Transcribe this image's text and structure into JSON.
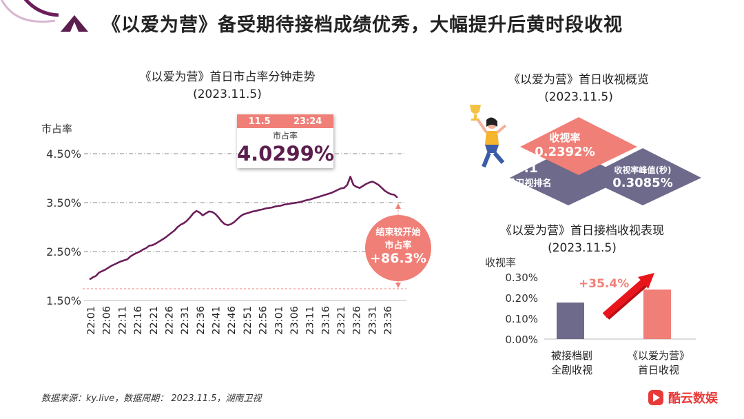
{
  "header": {
    "title": "《以爱为营》备受期待接档成绩优秀，大幅提升后黄时段收视"
  },
  "left_chart": {
    "title_line1": "《以爱为营》首日市占率分钟走势",
    "title_line2": "(2023.11.5)",
    "ylabel": "市占率",
    "callout_date": "11.5",
    "callout_time": "23:24",
    "callout_label": "市占率",
    "callout_value": "4.0299%",
    "growth_label1": "结束较开始",
    "growth_label2": "市占率",
    "growth_value": "+86.3%"
  },
  "overview": {
    "title_line1": "《以爱为营》首日收视概览",
    "title_line2": "(2023.11.5)",
    "rank_line1": "NO.1",
    "rank_line2": "同时段卫视排名",
    "rating_label": "收视率",
    "rating_value": "0.2392%",
    "peak_label": "收视率峰值(秒)",
    "peak_value": "0.3085%"
  },
  "bar_chart": {
    "title_line1": "《以爱为营》首日接档收视表现",
    "title_line2": "(2023.11.5)",
    "ylabel": "收视率",
    "cat1_line1": "被接档剧",
    "cat1_line2": "全剧收视",
    "cat2_line1": "《以爱为营》",
    "cat2_line2": "首日收视",
    "growth": "+35.4%"
  },
  "footer": {
    "source": "数据来源：ky.live，数据周期： 2023.11.5，湖南卫视",
    "logo_text": "酷云数娱"
  },
  "colors": {
    "line": "#6b1e5a",
    "accent": "#f07f77",
    "slate": "#6e6a8c",
    "arrow": "#e8161b"
  },
  "chart_data": [
    {
      "type": "line",
      "title": "《以爱为营》首日市占率分钟走势 (2023.11.5)",
      "ylabel": "市占率",
      "ylim": [
        1.5,
        4.5
      ],
      "yticks": [
        "1.50%",
        "2.50%",
        "3.50%",
        "4.50%"
      ],
      "xticks": [
        "22:01",
        "22:06",
        "22:11",
        "22:16",
        "22:21",
        "22:26",
        "22:31",
        "22:36",
        "22:41",
        "22:46",
        "22:51",
        "22:56",
        "23:01",
        "23:06",
        "23:11",
        "23:16",
        "23:21",
        "23:26",
        "23:31",
        "23:36"
      ],
      "series": [
        {
          "x": [
            "22:01",
            "22:02",
            "22:03",
            "22:04",
            "22:05",
            "22:06",
            "22:07",
            "22:08",
            "22:09",
            "22:10",
            "22:11",
            "22:12",
            "22:13",
            "22:14",
            "22:15",
            "22:16",
            "22:17",
            "22:18",
            "22:19",
            "22:20",
            "22:21",
            "22:22",
            "22:23",
            "22:24",
            "22:25",
            "22:26",
            "22:27",
            "22:28",
            "22:29",
            "22:30",
            "22:31",
            "22:32",
            "22:33",
            "22:34",
            "22:35",
            "22:36",
            "22:37",
            "22:38",
            "22:39",
            "22:40",
            "22:41",
            "22:42",
            "22:43",
            "22:44",
            "22:45",
            "22:46",
            "22:47",
            "22:48",
            "22:49",
            "22:50",
            "22:51",
            "22:52",
            "22:53",
            "22:54",
            "22:55",
            "22:56",
            "22:57",
            "22:58",
            "22:59",
            "23:00",
            "23:01",
            "23:02",
            "23:03",
            "23:04",
            "23:05",
            "23:06",
            "23:07",
            "23:08",
            "23:09",
            "23:10",
            "23:11",
            "23:12",
            "23:13",
            "23:14",
            "23:15",
            "23:16",
            "23:17",
            "23:18",
            "23:19",
            "23:20",
            "23:21",
            "23:22",
            "23:23",
            "23:24",
            "23:25",
            "23:26",
            "23:27",
            "23:28",
            "23:29",
            "23:30",
            "23:31",
            "23:32",
            "23:33",
            "23:34",
            "23:35",
            "23:36",
            "23:37",
            "23:38",
            "23:39"
          ],
          "values": [
            1.93,
            1.97,
            2.0,
            2.07,
            2.1,
            2.13,
            2.17,
            2.21,
            2.24,
            2.27,
            2.3,
            2.32,
            2.34,
            2.4,
            2.44,
            2.47,
            2.5,
            2.54,
            2.57,
            2.62,
            2.63,
            2.66,
            2.7,
            2.74,
            2.78,
            2.83,
            2.88,
            2.93,
            3.0,
            3.05,
            3.08,
            3.13,
            3.2,
            3.28,
            3.33,
            3.3,
            3.24,
            3.28,
            3.32,
            3.31,
            3.27,
            3.2,
            3.12,
            3.06,
            3.04,
            3.06,
            3.1,
            3.16,
            3.22,
            3.26,
            3.28,
            3.3,
            3.32,
            3.33,
            3.35,
            3.36,
            3.38,
            3.39,
            3.4,
            3.42,
            3.43,
            3.44,
            3.46,
            3.47,
            3.48,
            3.49,
            3.5,
            3.51,
            3.53,
            3.55,
            3.56,
            3.58,
            3.6,
            3.62,
            3.64,
            3.66,
            3.68,
            3.7,
            3.73,
            3.76,
            3.79,
            3.8,
            3.86,
            4.03,
            3.86,
            3.82,
            3.8,
            3.84,
            3.88,
            3.91,
            3.93,
            3.9,
            3.86,
            3.8,
            3.74,
            3.7,
            3.67,
            3.66,
            3.6
          ]
        }
      ],
      "annotations": [
        "11.5 23:24 市占率 4.0299%",
        "结束较开始 市占率 +86.3%"
      ]
    },
    {
      "type": "bar",
      "title": "《以爱为营》首日接档收视表现 (2023.11.5)",
      "ylabel": "收视率",
      "ylim": [
        0,
        0.3
      ],
      "yticks": [
        "0.00%",
        "0.10%",
        "0.20%",
        "0.30%"
      ],
      "categories": [
        "被接档剧全剧收视",
        "《以爱为营》首日收视"
      ],
      "values": [
        0.1767,
        0.2392
      ],
      "annotations": [
        "+35.4%"
      ]
    }
  ]
}
